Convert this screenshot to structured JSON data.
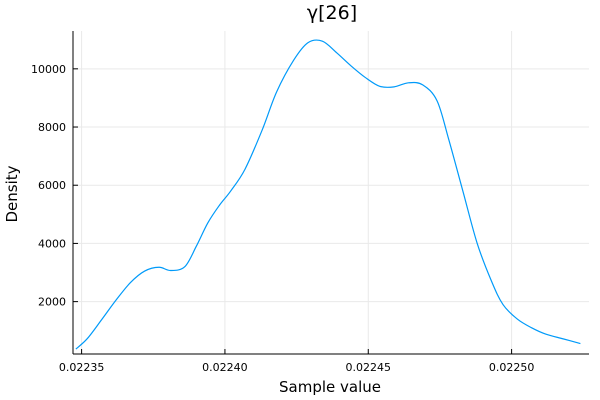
{
  "chart_data": {
    "type": "line",
    "title": "γ[26]",
    "xlabel": "Sample value",
    "ylabel": "Density",
    "xlim": [
      0.022347,
      0.022527
    ],
    "ylim": [
      200,
      11300
    ],
    "grid": true,
    "legend": "none",
    "x_ticks": [
      0.02235,
      0.0224,
      0.02245,
      0.0225
    ],
    "x_tick_labels": [
      "0.02235",
      "0.02240",
      "0.02245",
      "0.02250"
    ],
    "y_ticks": [
      2000,
      4000,
      6000,
      8000,
      10000
    ],
    "y_tick_labels": [
      "2000",
      "4000",
      "6000",
      "8000",
      "10000"
    ],
    "series": [
      {
        "color": "#009af9",
        "x": [
          0.022348,
          0.022352,
          0.022357,
          0.022362,
          0.022367,
          0.022372,
          0.022377,
          0.022381,
          0.022386,
          0.02239,
          0.022394,
          0.022398,
          0.022402,
          0.022407,
          0.022413,
          0.022418,
          0.022424,
          0.022429,
          0.022434,
          0.022439,
          0.022444,
          0.022449,
          0.022454,
          0.022459,
          0.022464,
          0.022469,
          0.022474,
          0.022478,
          0.022483,
          0.022488,
          0.022493,
          0.022497,
          0.022502,
          0.022507,
          0.022512,
          0.022518,
          0.022524
        ],
        "y": [
          370,
          730,
          1380,
          2050,
          2650,
          3050,
          3180,
          3070,
          3200,
          3900,
          4700,
          5300,
          5800,
          6550,
          7900,
          9200,
          10300,
          10900,
          10950,
          10550,
          10100,
          9700,
          9400,
          9380,
          9520,
          9450,
          8900,
          7600,
          5800,
          4000,
          2700,
          1900,
          1400,
          1100,
          880,
          720,
          560
        ]
      }
    ]
  }
}
